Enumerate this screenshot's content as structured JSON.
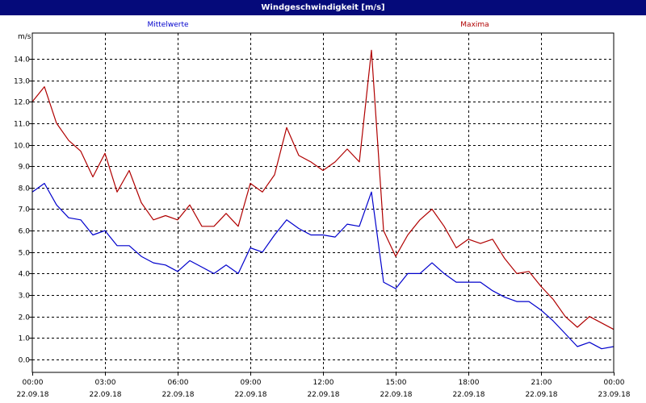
{
  "window": {
    "title": "Windgeschwindigkeit [m/s]"
  },
  "chart_data": {
    "type": "line",
    "title": "Windgeschwindigkeit [m/s]",
    "ylabel": "m/s",
    "xlabel": "",
    "ylim": [
      -0.6,
      15.2
    ],
    "yticks": [
      "0.0",
      "1.0",
      "2.0",
      "3.0",
      "4.0",
      "5.0",
      "6.0",
      "7.0",
      "8.0",
      "9.0",
      "10.0",
      "11.0",
      "12.0",
      "13.0",
      "14.0"
    ],
    "x_range_hours": [
      0,
      24
    ],
    "x_ticks": [
      {
        "time": "00:00",
        "date": "22.09.18"
      },
      {
        "time": "03:00",
        "date": "22.09.18"
      },
      {
        "time": "06:00",
        "date": "22.09.18"
      },
      {
        "time": "09:00",
        "date": "22.09.18"
      },
      {
        "time": "12:00",
        "date": "22.09.18"
      },
      {
        "time": "15:00",
        "date": "22.09.18"
      },
      {
        "time": "18:00",
        "date": "22.09.18"
      },
      {
        "time": "21:00",
        "date": "22.09.18"
      },
      {
        "time": "00:00",
        "date": "23.09.18"
      }
    ],
    "x_hours_sampled": [
      0,
      0.5,
      1,
      1.5,
      2,
      2.5,
      3,
      3.5,
      4,
      4.5,
      5,
      5.5,
      6,
      6.5,
      7,
      7.5,
      8,
      8.5,
      9,
      9.5,
      10,
      10.5,
      11,
      11.5,
      12,
      12.5,
      13,
      13.5,
      14,
      14.5,
      15,
      15.5,
      16,
      16.5,
      17,
      17.5,
      18,
      18.5,
      19,
      19.5,
      20,
      20.5,
      21,
      21.5,
      22,
      22.5,
      23,
      23.5,
      24
    ],
    "grid": true,
    "legend": "top",
    "series": [
      {
        "name": "Mittelwerte",
        "color": "#0000cc",
        "values": [
          7.8,
          8.2,
          7.2,
          6.6,
          6.5,
          5.8,
          6.0,
          5.3,
          5.3,
          4.8,
          4.5,
          4.4,
          4.1,
          4.6,
          4.3,
          4.0,
          4.4,
          4.0,
          5.2,
          5.0,
          5.8,
          6.5,
          6.1,
          5.8,
          5.8,
          5.7,
          6.3,
          6.2,
          7.8,
          3.6,
          3.3,
          4.0,
          4.0,
          4.5,
          4.0,
          3.6,
          3.6,
          3.6,
          3.2,
          2.9,
          2.7,
          2.7,
          2.3,
          1.8,
          1.2,
          0.6,
          0.8,
          0.5,
          0.6
        ]
      },
      {
        "name": "Maxima",
        "color": "#b00000",
        "values": [
          12.0,
          12.7,
          11.0,
          10.2,
          9.7,
          8.5,
          9.6,
          7.8,
          8.8,
          7.3,
          6.5,
          6.7,
          6.5,
          7.2,
          6.2,
          6.2,
          6.8,
          6.2,
          8.2,
          7.8,
          8.6,
          10.8,
          9.5,
          9.2,
          8.8,
          9.2,
          9.8,
          9.2,
          14.4,
          6.0,
          4.8,
          5.8,
          6.5,
          7.0,
          6.2,
          5.2,
          5.6,
          5.4,
          5.6,
          4.7,
          4.0,
          4.1,
          3.4,
          2.8,
          2.0,
          1.5,
          2.0,
          1.7,
          1.4
        ]
      }
    ]
  }
}
